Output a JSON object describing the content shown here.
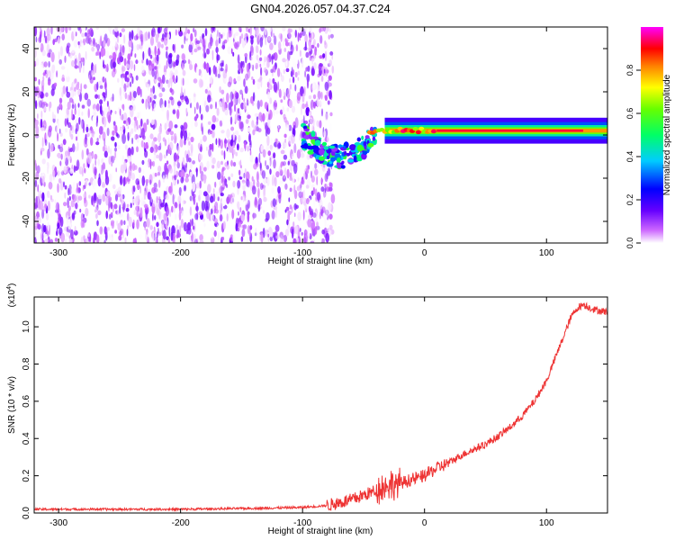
{
  "title": "GN04.2026.057.04.37.C24",
  "chart_data": [
    {
      "type": "heatmap",
      "xlabel": "Height of straight line (km)",
      "ylabel": "Frequency (Hz)",
      "xlim": [
        -320,
        150
      ],
      "ylim": [
        -50,
        50
      ],
      "xticks": [
        -300,
        -200,
        -100,
        0,
        100
      ],
      "yticks": [
        -40,
        -20,
        0,
        20,
        40
      ],
      "grid": false,
      "colorbar": {
        "label": "Normalized spectral amplitude",
        "range": [
          0,
          1
        ],
        "ticks": [
          0.0,
          0.2,
          0.4,
          0.6,
          0.8
        ],
        "colormap": [
          "#ffffff",
          "#9900ff",
          "#0000ff",
          "#00ccff",
          "#00ff00",
          "#ffff00",
          "#ff8000",
          "#ff0000",
          "#ff00ff"
        ]
      },
      "features": [
        {
          "x_range": [
            -320,
            -75
          ],
          "y_range": [
            -50,
            50
          ],
          "amplitude_range": [
            0.0,
            0.15
          ],
          "kind": "broadband noise"
        },
        {
          "x_range": [
            -100,
            -40
          ],
          "center_hz": [
            0,
            -10
          ],
          "amplitude_range": [
            0.1,
            0.6
          ],
          "kind": "scattered onset"
        },
        {
          "x_range": [
            -40,
            150
          ],
          "center_hz": 2,
          "amplitude_range": [
            0.6,
            1.0
          ],
          "kind": "narrow tone"
        }
      ]
    },
    {
      "type": "line",
      "xlabel": "Height of straight line (km)",
      "ylabel": "SNR (10 * v/v)",
      "yscale_label": "(x10",
      "yscale_exponent": "4",
      "xlim": [
        -320,
        150
      ],
      "ylim": [
        0,
        1.16
      ],
      "xticks": [
        -300,
        -200,
        -100,
        0,
        100
      ],
      "yticks": [
        0.0,
        0.2,
        0.4,
        0.6,
        0.8,
        1.0
      ],
      "grid": false,
      "series": [
        {
          "color": "#ee3333",
          "x": [
            -320,
            -200,
            -140,
            -100,
            -80,
            -60,
            -40,
            -30,
            -20,
            -10,
            0,
            10,
            20,
            30,
            40,
            50,
            60,
            70,
            80,
            90,
            100,
            110,
            120,
            125,
            130,
            140,
            150
          ],
          "y": [
            0.02,
            0.02,
            0.025,
            0.03,
            0.04,
            0.07,
            0.12,
            0.15,
            0.16,
            0.18,
            0.2,
            0.24,
            0.27,
            0.31,
            0.34,
            0.37,
            0.41,
            0.46,
            0.52,
            0.6,
            0.71,
            0.88,
            1.05,
            1.1,
            1.12,
            1.09,
            1.08
          ]
        }
      ]
    }
  ]
}
